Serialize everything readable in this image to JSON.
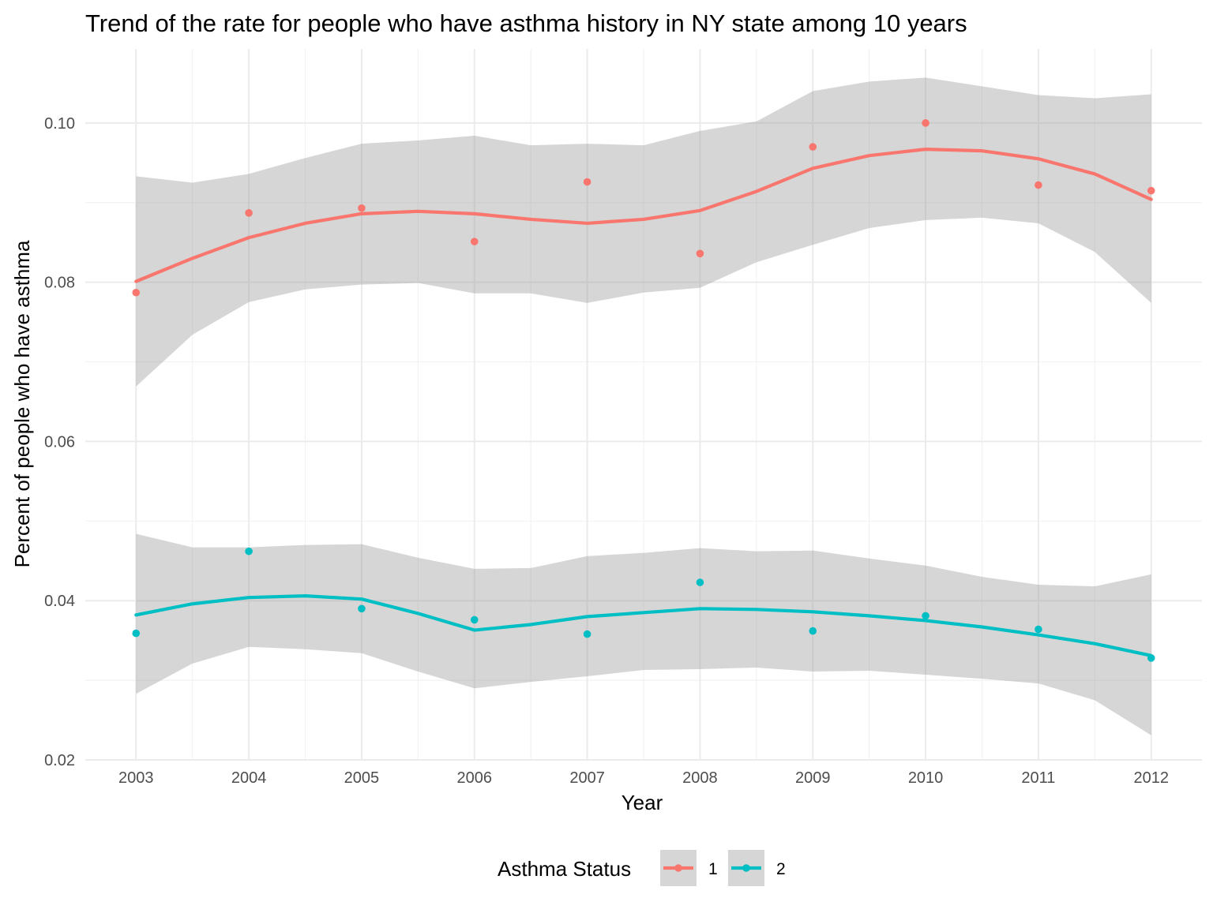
{
  "chart_data": {
    "type": "scatter",
    "title": "Trend of the rate for people who have asthma history in NY state among 10 years",
    "xlabel": "Year",
    "ylabel": "Percent of people who have asthma",
    "x": [
      2003,
      2004,
      2005,
      2006,
      2007,
      2008,
      2009,
      2010,
      2011,
      2012
    ],
    "x_tick_labels": [
      "2003",
      "2004",
      "2005",
      "2006",
      "2007",
      "2008",
      "2009",
      "2010",
      "2011",
      "2012"
    ],
    "xlim": [
      2002.55,
      2012.45
    ],
    "ylim": [
      0.02,
      0.1093
    ],
    "y_ticks": [
      0.02,
      0.04,
      0.06,
      0.08,
      0.1
    ],
    "y_tick_labels": [
      "0.02",
      "0.04",
      "0.06",
      "0.08",
      "0.10"
    ],
    "grid": true,
    "smoother": "loess with confidence band",
    "legend": {
      "title": "Asthma Status",
      "position": "bottom"
    },
    "series": [
      {
        "name": "1",
        "color": "#F8766D",
        "points": [
          0.0787,
          0.0887,
          0.0893,
          0.0851,
          0.0926,
          0.0836,
          0.097,
          0.1,
          0.0922,
          0.0915
        ],
        "smooth_x": [
          2003,
          2003.5,
          2004,
          2004.5,
          2005,
          2005.5,
          2006,
          2006.5,
          2007,
          2007.5,
          2008,
          2008.5,
          2009,
          2009.5,
          2010,
          2010.5,
          2011,
          2011.5,
          2012
        ],
        "smooth": [
          0.0801,
          0.083,
          0.0856,
          0.0874,
          0.0886,
          0.0889,
          0.0886,
          0.0879,
          0.0874,
          0.0879,
          0.089,
          0.0914,
          0.0943,
          0.0959,
          0.0967,
          0.0965,
          0.0955,
          0.0936,
          0.0904
        ],
        "ci_lower": [
          0.0669,
          0.0734,
          0.0775,
          0.0791,
          0.0797,
          0.0799,
          0.0786,
          0.0786,
          0.0774,
          0.0787,
          0.0793,
          0.0825,
          0.0847,
          0.0868,
          0.0878,
          0.0881,
          0.0874,
          0.0838,
          0.0774
        ],
        "ci_upper": [
          0.0933,
          0.0925,
          0.0936,
          0.0956,
          0.0974,
          0.0978,
          0.0984,
          0.0972,
          0.0974,
          0.0972,
          0.099,
          0.1002,
          0.104,
          0.1052,
          0.1057,
          0.1046,
          0.1035,
          0.1031,
          0.1036
        ]
      },
      {
        "name": "2",
        "color": "#00BFC4",
        "points": [
          0.0359,
          0.0462,
          0.039,
          0.0376,
          0.0358,
          0.0423,
          0.0362,
          0.0381,
          0.0364,
          0.0328
        ],
        "smooth_x": [
          2003,
          2003.5,
          2004,
          2004.5,
          2005,
          2005.5,
          2006,
          2006.5,
          2007,
          2007.5,
          2008,
          2008.5,
          2009,
          2009.5,
          2010,
          2010.5,
          2011,
          2011.5,
          2012
        ],
        "smooth": [
          0.0382,
          0.0396,
          0.0404,
          0.0406,
          0.0402,
          0.0384,
          0.0363,
          0.037,
          0.038,
          0.0385,
          0.039,
          0.0389,
          0.0386,
          0.0381,
          0.0375,
          0.0367,
          0.0357,
          0.0346,
          0.0331
        ],
        "ci_lower": [
          0.0283,
          0.0321,
          0.0342,
          0.0339,
          0.0334,
          0.0311,
          0.029,
          0.0298,
          0.0305,
          0.0313,
          0.0314,
          0.0316,
          0.0311,
          0.0312,
          0.0307,
          0.0302,
          0.0296,
          0.0275,
          0.0231
        ],
        "ci_upper": [
          0.0484,
          0.0467,
          0.0467,
          0.047,
          0.0471,
          0.0454,
          0.044,
          0.0441,
          0.0456,
          0.046,
          0.0466,
          0.0462,
          0.0463,
          0.0453,
          0.0444,
          0.043,
          0.042,
          0.0418,
          0.0433
        ]
      }
    ]
  }
}
